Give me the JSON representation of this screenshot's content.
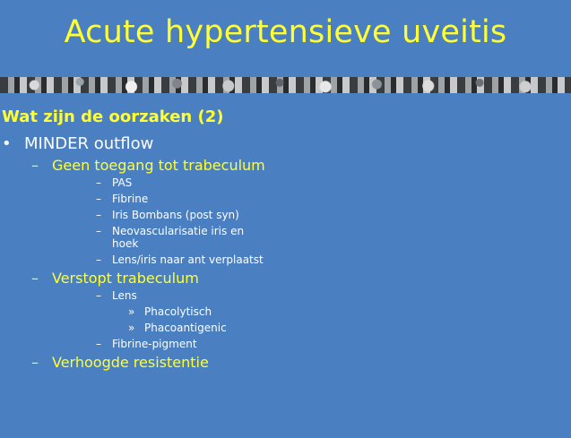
{
  "slide": {
    "title": "Acute hypertensieve uveitis",
    "subtitle": "Wat zijn de oorzaken (2)",
    "bullets": {
      "l1_marker": "•",
      "l2_marker": "–",
      "l3_marker": "–",
      "l4_marker": "»",
      "item_minder": "MINDER outflow",
      "item_geen": "Geen toegang tot trabeculum",
      "item_pas": "PAS",
      "item_fibrine": "Fibrine",
      "item_iris": "Iris Bombans (post syn)",
      "item_neo_1": "Neovascularisatie iris en",
      "item_neo_2": "hoek",
      "item_lens_iris": "Lens/iris naar ant verplaatst",
      "item_verstopt": "Verstopt trabeculum",
      "item_lens": "Lens",
      "item_phacolytisch": "Phacolytisch",
      "item_phacoantigenic": "Phacoantigenic",
      "item_fibrine_pigment": "Fibrine-pigment",
      "item_verhoogde": "Verhoogde resistentie"
    },
    "colors": {
      "background": "#4a7fc1",
      "title": "#ffff33",
      "text": "#ffffff"
    }
  }
}
